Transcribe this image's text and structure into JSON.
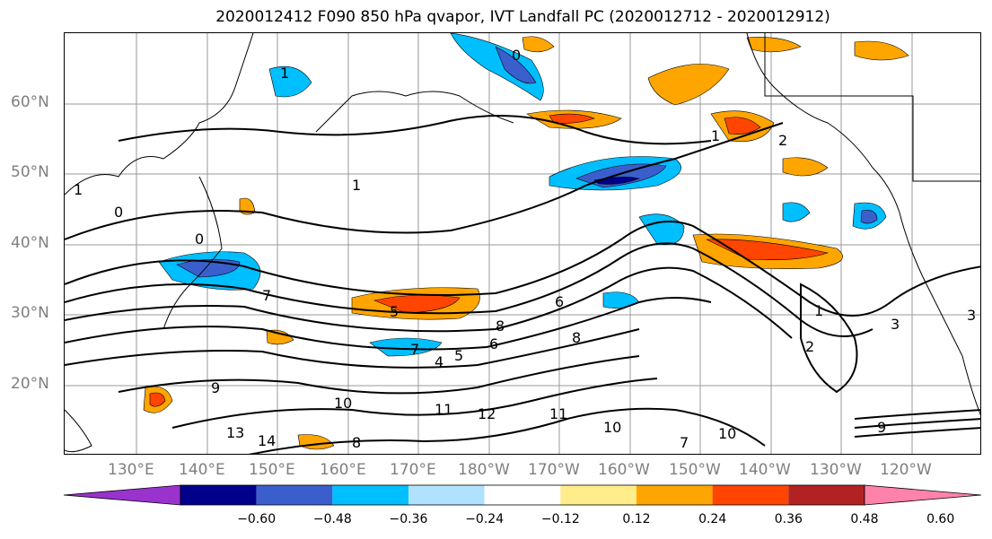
{
  "title": "2020012412 F090 850 hPa qvapor, IVT Landfall PC (2020012712 - 2020012912)",
  "lat_labels": [
    "60°N",
    "50°N",
    "40°N",
    "30°N",
    "20°N"
  ],
  "lon_labels": [
    "130°E",
    "140°E",
    "150°E",
    "160°E",
    "170°E",
    "180°W",
    "170°W",
    "160°W",
    "150°W",
    "140°W",
    "130°W",
    "120°W"
  ],
  "colorbar": {
    "ticks": [
      "−0.60",
      "−0.48",
      "−0.36",
      "−0.24",
      "−0.12",
      "0.12",
      "0.24",
      "0.36",
      "0.48",
      "0.60"
    ],
    "colors": [
      "#9a32cd",
      "#00008b",
      "#3a5fcd",
      "#00bfff",
      "#b0e2ff",
      "#ffffff",
      "#ffec8b",
      "#ffa500",
      "#ff4500",
      "#b22222",
      "#ff82ab"
    ]
  },
  "contour_labels": [
    "0",
    "1",
    "1",
    "0",
    "1",
    "2",
    "3",
    "5",
    "6",
    "7",
    "8",
    "4",
    "5",
    "6",
    "7",
    "8",
    "9",
    "10",
    "11",
    "12",
    "13",
    "14",
    "10",
    "11",
    "10",
    "7",
    "8",
    "9",
    "1",
    "2",
    "3",
    "0",
    "1"
  ]
}
